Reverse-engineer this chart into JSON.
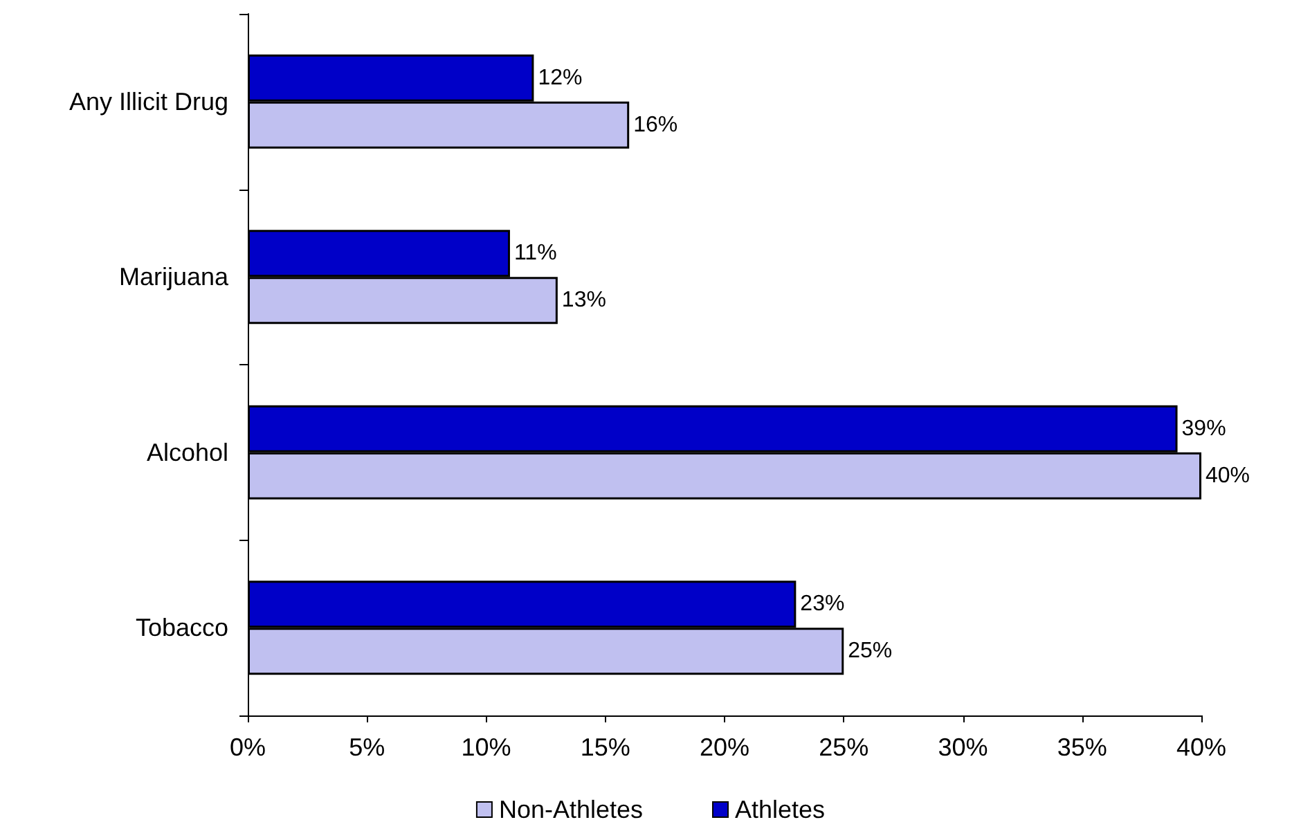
{
  "chart_data": {
    "type": "bar",
    "orientation": "horizontal",
    "categories": [
      "Any Illicit Drug",
      "Marijuana",
      "Alcohol",
      "Tobacco"
    ],
    "series": [
      {
        "name": "Non-Athletes",
        "color": "#c0c0f0",
        "values": [
          16,
          13,
          40,
          25
        ],
        "value_labels": [
          "16%",
          "13%",
          "40%",
          "25%"
        ]
      },
      {
        "name": "Athletes",
        "color": "#0000c8",
        "values": [
          12,
          11,
          39,
          23
        ],
        "value_labels": [
          "12%",
          "11%",
          "39%",
          "23%"
        ]
      }
    ],
    "xlim": [
      0,
      40
    ],
    "xticks": [
      {
        "value": 0,
        "label": "0%"
      },
      {
        "value": 5,
        "label": "5%"
      },
      {
        "value": 10,
        "label": "10%"
      },
      {
        "value": 15,
        "label": "15%"
      },
      {
        "value": 20,
        "label": "20%"
      },
      {
        "value": 25,
        "label": "25%"
      },
      {
        "value": 30,
        "label": "30%"
      },
      {
        "value": 35,
        "label": "35%"
      },
      {
        "value": 40,
        "label": "40%"
      }
    ],
    "grid": false,
    "legend": "bottom"
  }
}
